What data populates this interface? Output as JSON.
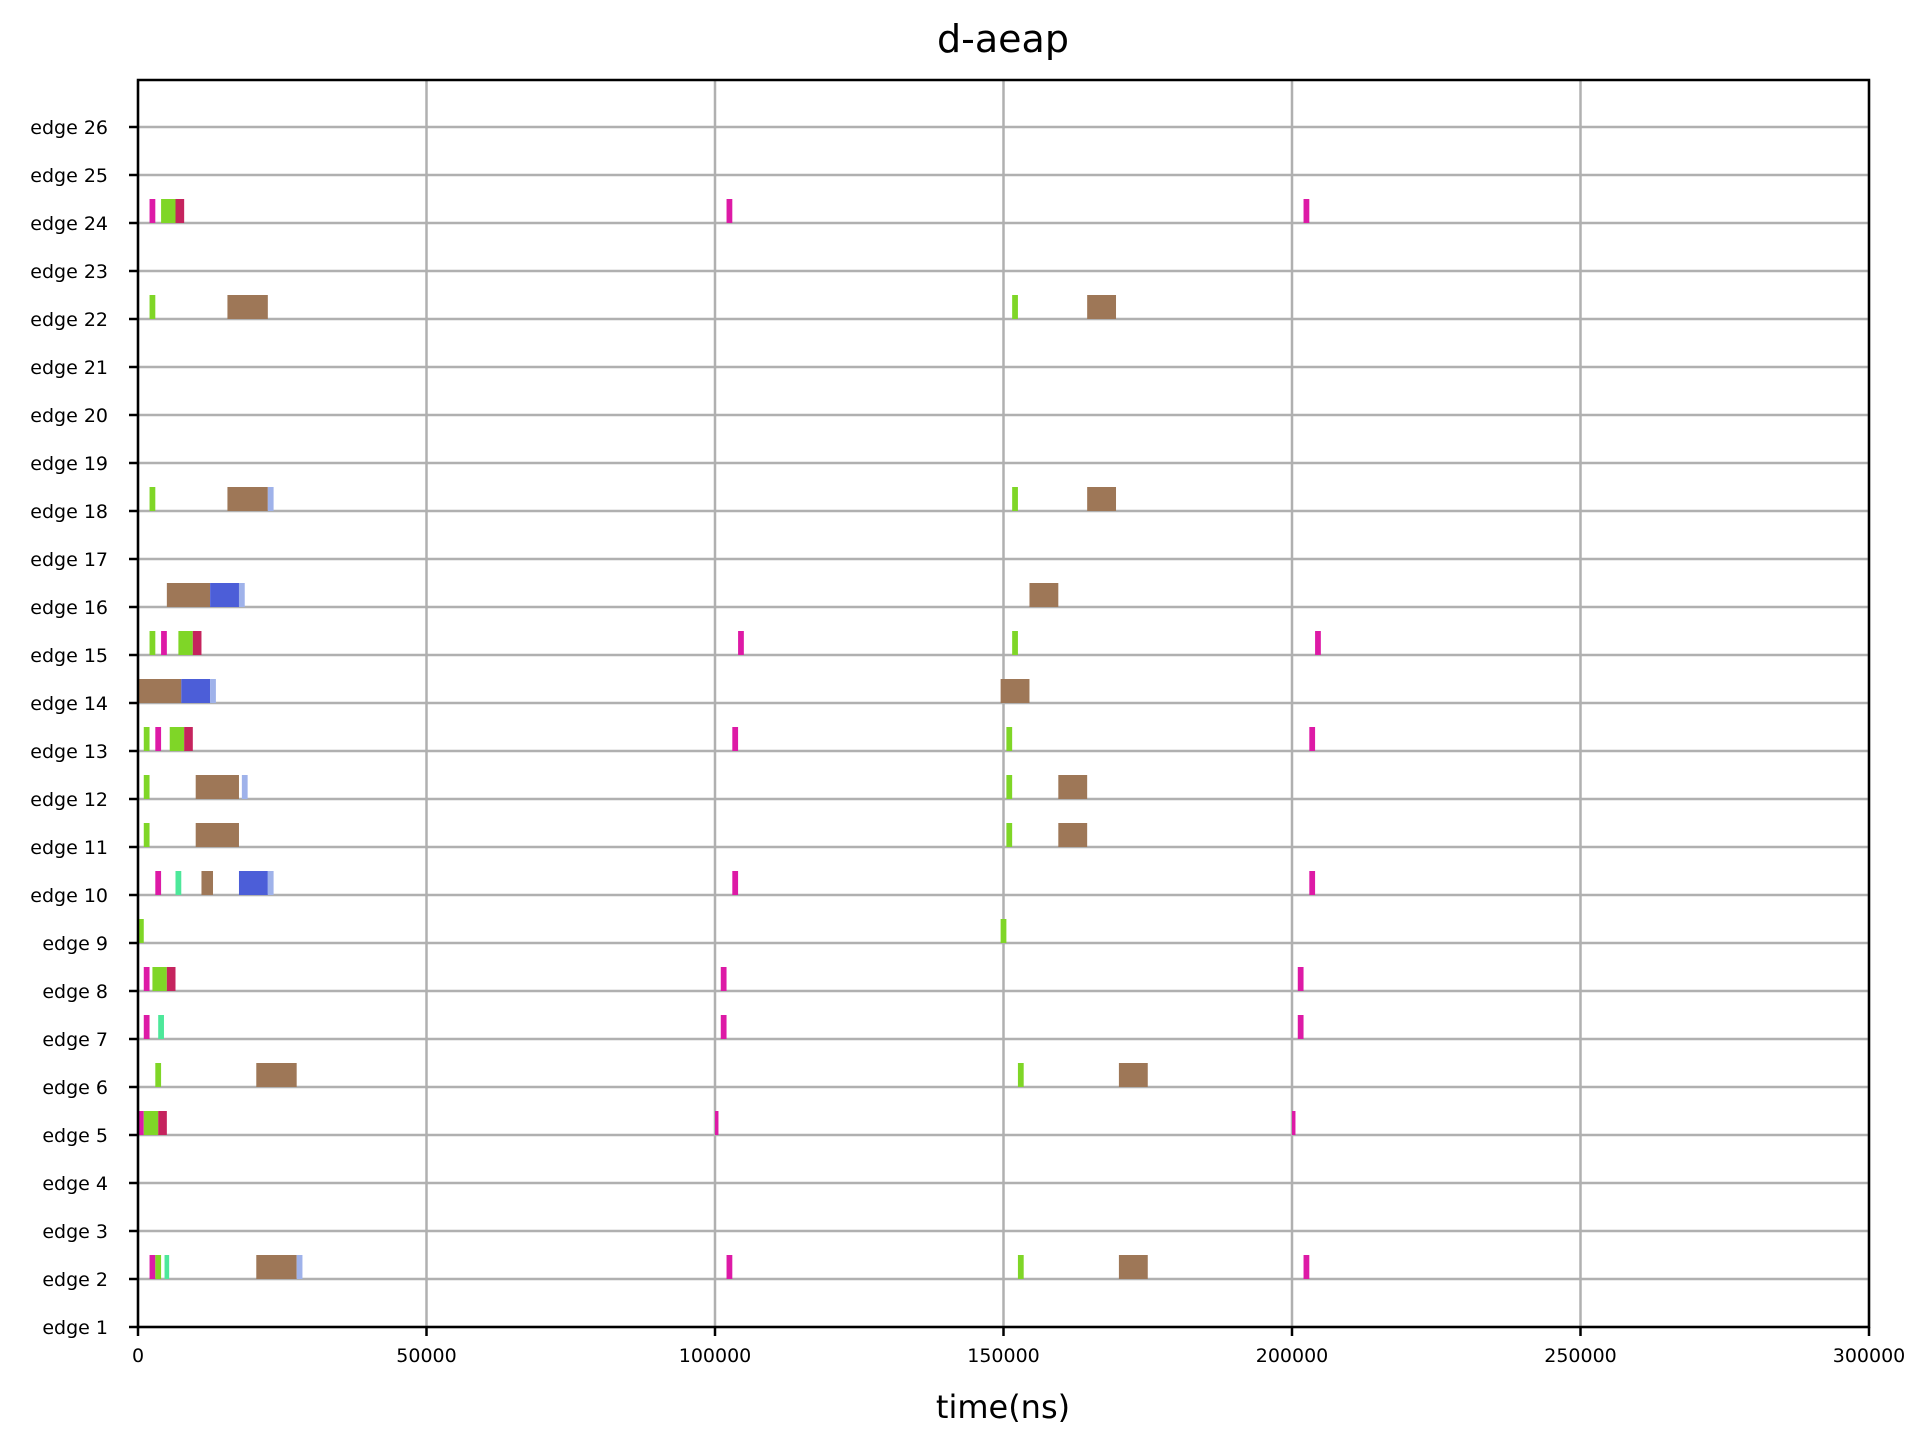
{
  "chart_data": {
    "type": "timeline",
    "title": "d-aeap",
    "xlabel": "time(ns)",
    "ylabel": "",
    "xlim": [
      0,
      300000
    ],
    "x_ticks": [
      0,
      50000,
      100000,
      150000,
      200000,
      250000,
      300000
    ],
    "grid": true,
    "categories": [
      "edge 1",
      "edge 2",
      "edge 3",
      "edge 4",
      "edge 5",
      "edge 6",
      "edge 7",
      "edge 8",
      "edge 9",
      "edge 10",
      "edge 11",
      "edge 12",
      "edge 13",
      "edge 14",
      "edge 15",
      "edge 16",
      "edge 17",
      "edge 18",
      "edge 19",
      "edge 20",
      "edge 21",
      "edge 22",
      "edge 23",
      "edge 24",
      "edge 25",
      "edge 26"
    ],
    "colors": {
      "magenta": "#dd1aa6",
      "crimson": "#c5245e",
      "green": "#7fd627",
      "mint": "#4de89a",
      "brown": "#9e7757",
      "blue": "#4c5ed8",
      "lightblue": "#9fb2ea"
    },
    "bars": [
      {
        "edge": "edge 2",
        "start": 2000,
        "end": 3000,
        "color": "magenta"
      },
      {
        "edge": "edge 2",
        "start": 3000,
        "end": 4000,
        "color": "green"
      },
      {
        "edge": "edge 2",
        "start": 4600,
        "end": 5400,
        "color": "mint"
      },
      {
        "edge": "edge 2",
        "start": 20500,
        "end": 27500,
        "color": "brown"
      },
      {
        "edge": "edge 2",
        "start": 27500,
        "end": 28500,
        "color": "lightblue"
      },
      {
        "edge": "edge 2",
        "start": 102000,
        "end": 103000,
        "color": "magenta"
      },
      {
        "edge": "edge 2",
        "start": 152500,
        "end": 153500,
        "color": "green"
      },
      {
        "edge": "edge 2",
        "start": 170000,
        "end": 175000,
        "color": "brown"
      },
      {
        "edge": "edge 2",
        "start": 202000,
        "end": 203000,
        "color": "magenta"
      },
      {
        "edge": "edge 5",
        "start": 0,
        "end": 1000,
        "color": "magenta"
      },
      {
        "edge": "edge 5",
        "start": 1000,
        "end": 3500,
        "color": "green"
      },
      {
        "edge": "edge 5",
        "start": 3500,
        "end": 5000,
        "color": "crimson"
      },
      {
        "edge": "edge 5",
        "start": 100000,
        "end": 100600,
        "color": "magenta"
      },
      {
        "edge": "edge 5",
        "start": 200000,
        "end": 200600,
        "color": "magenta"
      },
      {
        "edge": "edge 6",
        "start": 3000,
        "end": 4000,
        "color": "green"
      },
      {
        "edge": "edge 6",
        "start": 20500,
        "end": 27500,
        "color": "brown"
      },
      {
        "edge": "edge 6",
        "start": 152500,
        "end": 153500,
        "color": "green"
      },
      {
        "edge": "edge 6",
        "start": 170000,
        "end": 175000,
        "color": "brown"
      },
      {
        "edge": "edge 7",
        "start": 1000,
        "end": 2000,
        "color": "magenta"
      },
      {
        "edge": "edge 7",
        "start": 3500,
        "end": 4500,
        "color": "mint"
      },
      {
        "edge": "edge 7",
        "start": 101000,
        "end": 102000,
        "color": "magenta"
      },
      {
        "edge": "edge 7",
        "start": 201000,
        "end": 202000,
        "color": "magenta"
      },
      {
        "edge": "edge 8",
        "start": 1000,
        "end": 2000,
        "color": "magenta"
      },
      {
        "edge": "edge 8",
        "start": 2500,
        "end": 5000,
        "color": "green"
      },
      {
        "edge": "edge 8",
        "start": 5000,
        "end": 6500,
        "color": "crimson"
      },
      {
        "edge": "edge 8",
        "start": 101000,
        "end": 102000,
        "color": "magenta"
      },
      {
        "edge": "edge 8",
        "start": 201000,
        "end": 202000,
        "color": "magenta"
      },
      {
        "edge": "edge 9",
        "start": 0,
        "end": 1000,
        "color": "green"
      },
      {
        "edge": "edge 9",
        "start": 149500,
        "end": 150500,
        "color": "green"
      },
      {
        "edge": "edge 10",
        "start": 3000,
        "end": 4000,
        "color": "magenta"
      },
      {
        "edge": "edge 10",
        "start": 6500,
        "end": 7500,
        "color": "mint"
      },
      {
        "edge": "edge 10",
        "start": 11000,
        "end": 13000,
        "color": "brown"
      },
      {
        "edge": "edge 10",
        "start": 17500,
        "end": 22500,
        "color": "blue"
      },
      {
        "edge": "edge 10",
        "start": 22500,
        "end": 23500,
        "color": "lightblue"
      },
      {
        "edge": "edge 10",
        "start": 103000,
        "end": 104000,
        "color": "magenta"
      },
      {
        "edge": "edge 10",
        "start": 203000,
        "end": 204000,
        "color": "magenta"
      },
      {
        "edge": "edge 11",
        "start": 1000,
        "end": 2000,
        "color": "green"
      },
      {
        "edge": "edge 11",
        "start": 10000,
        "end": 17500,
        "color": "brown"
      },
      {
        "edge": "edge 11",
        "start": 150500,
        "end": 151500,
        "color": "green"
      },
      {
        "edge": "edge 11",
        "start": 159500,
        "end": 164500,
        "color": "brown"
      },
      {
        "edge": "edge 12",
        "start": 1000,
        "end": 2000,
        "color": "green"
      },
      {
        "edge": "edge 12",
        "start": 10000,
        "end": 17500,
        "color": "brown"
      },
      {
        "edge": "edge 12",
        "start": 18000,
        "end": 19000,
        "color": "lightblue"
      },
      {
        "edge": "edge 12",
        "start": 150500,
        "end": 151500,
        "color": "green"
      },
      {
        "edge": "edge 12",
        "start": 159500,
        "end": 164500,
        "color": "brown"
      },
      {
        "edge": "edge 13",
        "start": 1000,
        "end": 2000,
        "color": "green"
      },
      {
        "edge": "edge 13",
        "start": 3000,
        "end": 4000,
        "color": "magenta"
      },
      {
        "edge": "edge 13",
        "start": 5500,
        "end": 8000,
        "color": "green"
      },
      {
        "edge": "edge 13",
        "start": 8000,
        "end": 9500,
        "color": "crimson"
      },
      {
        "edge": "edge 13",
        "start": 103000,
        "end": 104000,
        "color": "magenta"
      },
      {
        "edge": "edge 13",
        "start": 150500,
        "end": 151500,
        "color": "green"
      },
      {
        "edge": "edge 13",
        "start": 203000,
        "end": 204000,
        "color": "magenta"
      },
      {
        "edge": "edge 14",
        "start": 0,
        "end": 7500,
        "color": "brown"
      },
      {
        "edge": "edge 14",
        "start": 7500,
        "end": 12500,
        "color": "blue"
      },
      {
        "edge": "edge 14",
        "start": 12500,
        "end": 13500,
        "color": "lightblue"
      },
      {
        "edge": "edge 14",
        "start": 149500,
        "end": 154500,
        "color": "brown"
      },
      {
        "edge": "edge 15",
        "start": 2000,
        "end": 3000,
        "color": "green"
      },
      {
        "edge": "edge 15",
        "start": 4000,
        "end": 5000,
        "color": "magenta"
      },
      {
        "edge": "edge 15",
        "start": 7000,
        "end": 9500,
        "color": "green"
      },
      {
        "edge": "edge 15",
        "start": 9500,
        "end": 11000,
        "color": "crimson"
      },
      {
        "edge": "edge 15",
        "start": 104000,
        "end": 105000,
        "color": "magenta"
      },
      {
        "edge": "edge 15",
        "start": 151500,
        "end": 152500,
        "color": "green"
      },
      {
        "edge": "edge 15",
        "start": 204000,
        "end": 205000,
        "color": "magenta"
      },
      {
        "edge": "edge 16",
        "start": 5000,
        "end": 12500,
        "color": "brown"
      },
      {
        "edge": "edge 16",
        "start": 12500,
        "end": 17500,
        "color": "blue"
      },
      {
        "edge": "edge 16",
        "start": 17500,
        "end": 18500,
        "color": "lightblue"
      },
      {
        "edge": "edge 16",
        "start": 154500,
        "end": 159500,
        "color": "brown"
      },
      {
        "edge": "edge 18",
        "start": 2000,
        "end": 3000,
        "color": "green"
      },
      {
        "edge": "edge 18",
        "start": 15500,
        "end": 22500,
        "color": "brown"
      },
      {
        "edge": "edge 18",
        "start": 22500,
        "end": 23500,
        "color": "lightblue"
      },
      {
        "edge": "edge 18",
        "start": 151500,
        "end": 152500,
        "color": "green"
      },
      {
        "edge": "edge 18",
        "start": 164500,
        "end": 169500,
        "color": "brown"
      },
      {
        "edge": "edge 22",
        "start": 2000,
        "end": 3000,
        "color": "green"
      },
      {
        "edge": "edge 22",
        "start": 15500,
        "end": 22500,
        "color": "brown"
      },
      {
        "edge": "edge 22",
        "start": 151500,
        "end": 152500,
        "color": "green"
      },
      {
        "edge": "edge 22",
        "start": 164500,
        "end": 169500,
        "color": "brown"
      },
      {
        "edge": "edge 24",
        "start": 2000,
        "end": 3000,
        "color": "magenta"
      },
      {
        "edge": "edge 24",
        "start": 4000,
        "end": 6500,
        "color": "green"
      },
      {
        "edge": "edge 24",
        "start": 6500,
        "end": 8000,
        "color": "crimson"
      },
      {
        "edge": "edge 24",
        "start": 102000,
        "end": 103000,
        "color": "magenta"
      },
      {
        "edge": "edge 24",
        "start": 202000,
        "end": 203000,
        "color": "magenta"
      }
    ]
  }
}
